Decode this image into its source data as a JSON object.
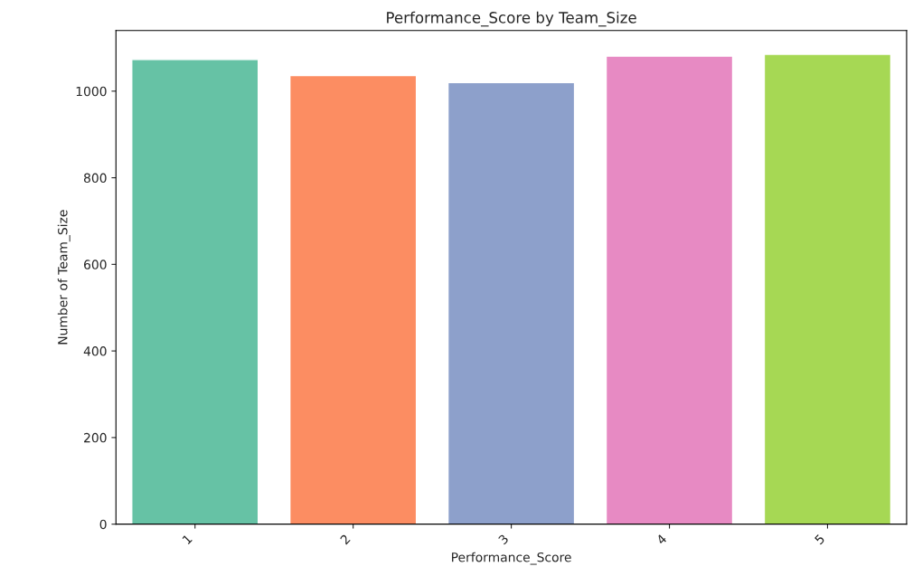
{
  "chart_data": {
    "type": "bar",
    "title": "Performance_Score by Team_Size",
    "xlabel": "Performance_Score",
    "ylabel": "Number of Team_Size",
    "categories": [
      "1",
      "2",
      "3",
      "4",
      "5"
    ],
    "values": [
      1073,
      1036,
      1020,
      1081,
      1085
    ],
    "colors": [
      "#66c2a5",
      "#fc8d62",
      "#8da0cb",
      "#e78ac3",
      "#a6d854"
    ],
    "ylim": [
      0,
      1140
    ],
    "yticks": [
      0,
      200,
      400,
      600,
      800,
      1000
    ],
    "grid": false
  }
}
